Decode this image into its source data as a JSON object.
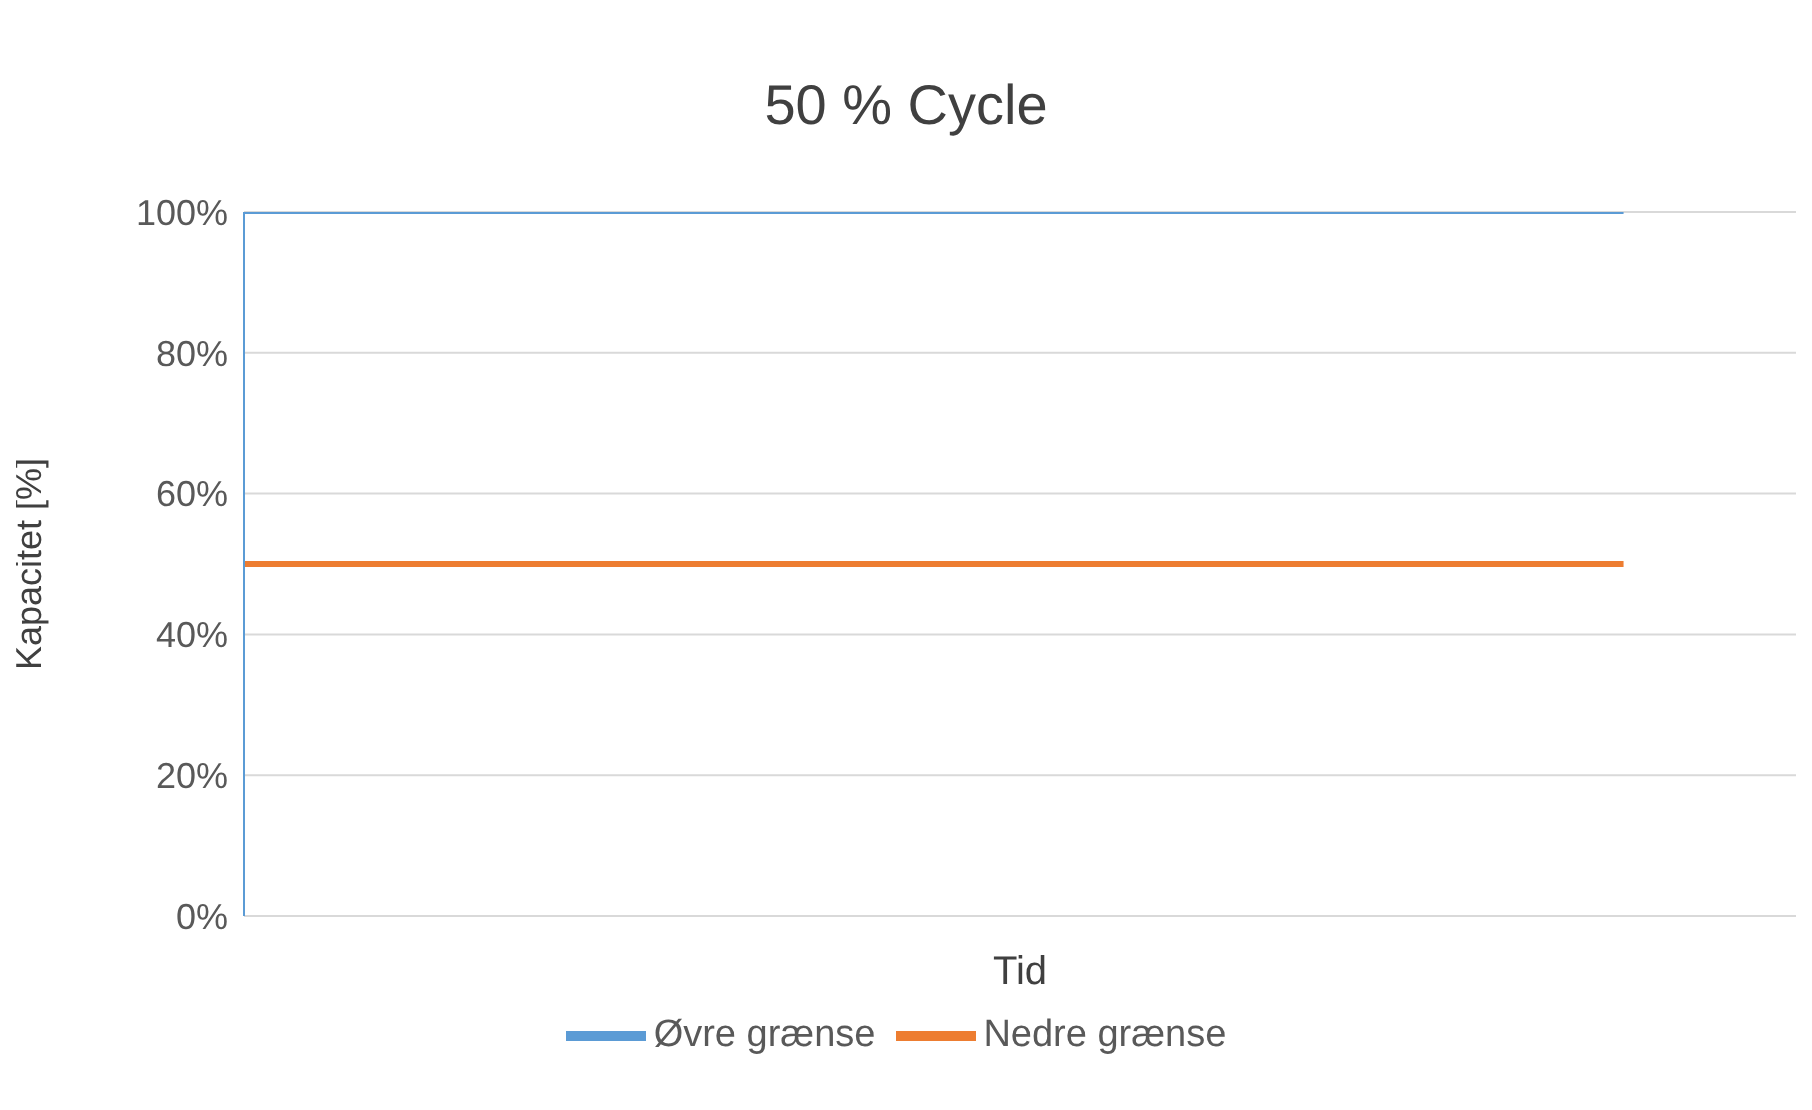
{
  "chart_data": {
    "type": "line",
    "title": "50 % Cycle",
    "xlabel": "Tid",
    "ylabel": "Kapacitet [%]",
    "categories": [
      null,
      null,
      null,
      null,
      null,
      null,
      null,
      null,
      null,
      null
    ],
    "series": [
      {
        "name": "Øvre grænse",
        "color": "#5b9bd5",
        "values": [
          100,
          100,
          100,
          100,
          100,
          100,
          100,
          100,
          100,
          null
        ]
      },
      {
        "name": "Nedre grænse",
        "color": "#ed7d31",
        "values": [
          50,
          50,
          50,
          50,
          50,
          50,
          50,
          50,
          50,
          null
        ]
      }
    ],
    "ylim": [
      0,
      100
    ],
    "yticks": [
      {
        "value": 0,
        "label": "0%"
      },
      {
        "value": 20,
        "label": "20%"
      },
      {
        "value": 40,
        "label": "40%"
      },
      {
        "value": 60,
        "label": "60%"
      },
      {
        "value": 80,
        "label": "80%"
      },
      {
        "value": 100,
        "label": "100%"
      }
    ],
    "grid": "y",
    "legend": "bottom",
    "marker": "none",
    "line_style": "solid",
    "tick_labels": "y"
  }
}
